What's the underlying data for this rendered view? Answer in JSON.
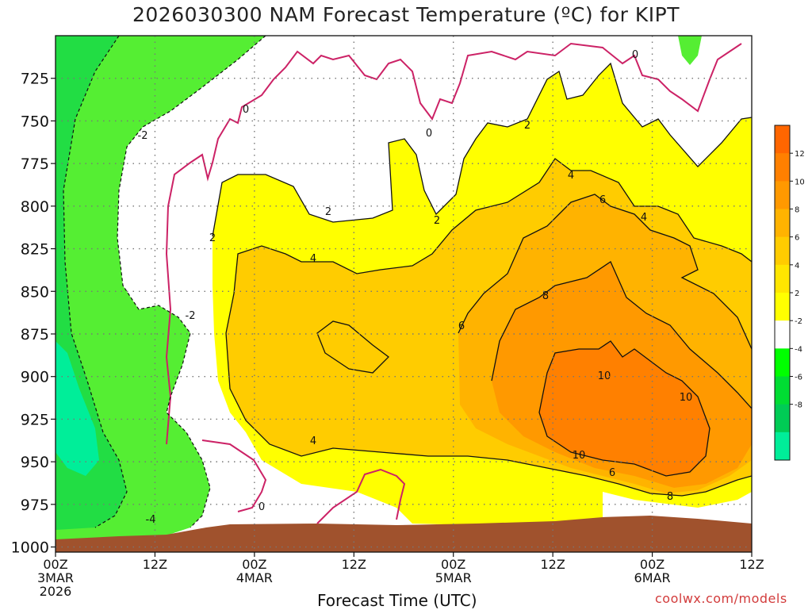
{
  "title": "2026030300 NAM Forecast Temperature (ºC) for KIPT",
  "xlabel": "Forecast Time (UTC)",
  "credit": "coolwx.com/models",
  "chart_data": {
    "type": "heatmap",
    "title": "2026030300 NAM Forecast Temperature (ºC) for KIPT",
    "xlabel": "Forecast Time (UTC)",
    "ylabel": "",
    "y_axis": {
      "ticks": [
        725,
        750,
        775,
        800,
        825,
        850,
        875,
        900,
        925,
        950,
        975,
        1000
      ],
      "range": [
        700,
        1003
      ]
    },
    "x_axis": {
      "range_hours": [
        0,
        84
      ],
      "ticks": [
        {
          "hour": 0,
          "line1": "00Z",
          "line2": "3MAR",
          "line3": "2026"
        },
        {
          "hour": 12,
          "line1": "12Z",
          "line2": "",
          "line3": ""
        },
        {
          "hour": 24,
          "line1": "00Z",
          "line2": "4MAR",
          "line3": ""
        },
        {
          "hour": 36,
          "line1": "12Z",
          "line2": "",
          "line3": ""
        },
        {
          "hour": 48,
          "line1": "00Z",
          "line2": "5MAR",
          "line3": ""
        },
        {
          "hour": 60,
          "line1": "12Z",
          "line2": "",
          "line3": ""
        },
        {
          "hour": 72,
          "line1": "00Z",
          "line2": "6MAR",
          "line3": ""
        },
        {
          "hour": 84,
          "line1": "12Z",
          "line2": "",
          "line3": ""
        }
      ]
    },
    "colorbar": {
      "labels": [
        "12",
        "10",
        "8",
        "6",
        "4",
        "2",
        "-2",
        "-4",
        "-6",
        "-8"
      ],
      "bins": [
        {
          "color": "#ff6600"
        },
        {
          "color": "#ff8000"
        },
        {
          "color": "#ff9900"
        },
        {
          "color": "#ffb300"
        },
        {
          "color": "#ffcc00"
        },
        {
          "color": "#ffe600"
        },
        {
          "color": "#ffff00"
        },
        {
          "color": "#ffffff"
        },
        {
          "color": "#00ff00"
        },
        {
          "color": "#00dd33"
        },
        {
          "color": "#00cc55"
        },
        {
          "color": "#00ee99"
        }
      ]
    },
    "contour_labels": [
      "0",
      "0",
      "0",
      "0",
      "-2",
      "-2",
      "-4",
      "2",
      "2",
      "2",
      "2",
      "4",
      "4",
      "4",
      "4",
      "6",
      "6",
      "6",
      "8",
      "8",
      "10",
      "10",
      "10"
    ],
    "terrain_color": "#a0522d",
    "grid": true
  }
}
